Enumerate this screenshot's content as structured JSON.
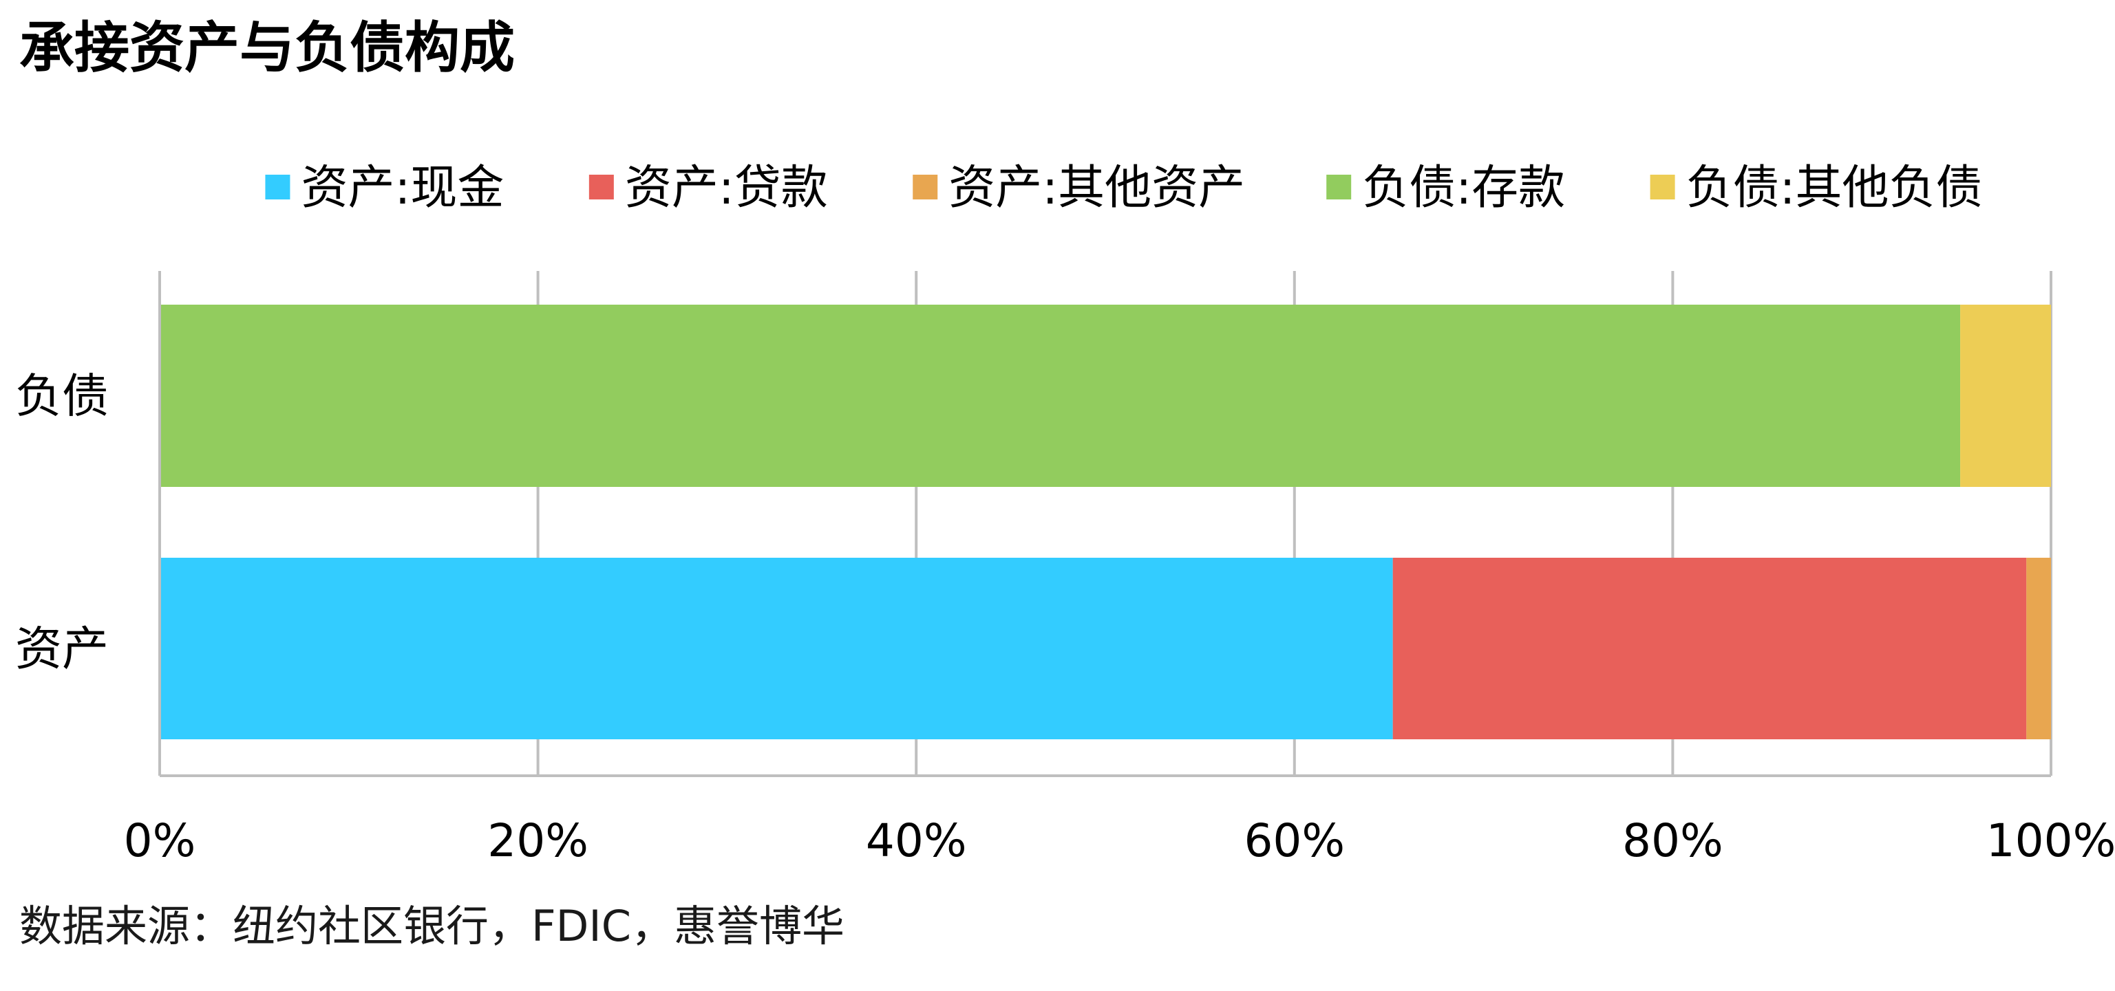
{
  "title": "承接资产与负债构成",
  "source": "数据来源：纽约社区银行，FDIC，惠誉博华",
  "chart_data": {
    "type": "bar",
    "orientation": "horizontal",
    "stacked": "percent",
    "title": "承接资产与负债构成",
    "categories": [
      "负债",
      "资产"
    ],
    "series": [
      {
        "name": "资产:现金",
        "color": "#33CCFF",
        "values": [
          0,
          65.2
        ]
      },
      {
        "name": "资产:贷款",
        "color": "#E8605A",
        "values": [
          0,
          33.5
        ]
      },
      {
        "name": "资产:其他资产",
        "color": "#E8A650",
        "values": [
          0,
          1.3
        ]
      },
      {
        "name": "负债:存款",
        "color": "#92CC5E",
        "values": [
          95.2,
          0
        ]
      },
      {
        "name": "负债:其他负债",
        "color": "#EDCD55",
        "values": [
          4.8,
          0
        ]
      }
    ],
    "xlim": [
      0,
      100
    ],
    "xticks": [
      "0%",
      "20%",
      "40%",
      "60%",
      "80%",
      "100%"
    ],
    "grid": true,
    "legend_position": "top"
  }
}
